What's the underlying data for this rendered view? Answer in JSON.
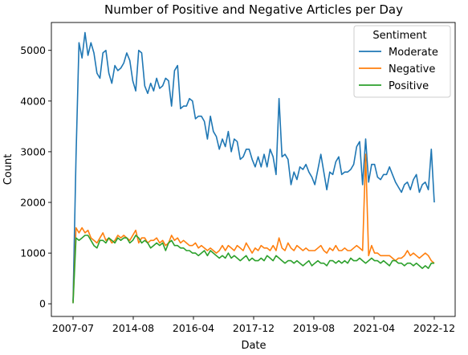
{
  "chart_data": {
    "type": "line",
    "title": "Number of Positive and Negative Articles per Day",
    "xlabel": "Date",
    "ylabel": "Count",
    "x_tick_labels": [
      "2007-07",
      "2014-08",
      "2016-04",
      "2017-12",
      "2019-08",
      "2021-04",
      "2022-12"
    ],
    "y_ticks": [
      0,
      1000,
      2000,
      3000,
      4000,
      5000
    ],
    "ylim": [
      -250,
      5550
    ],
    "grid": false,
    "legend": {
      "title": "Sentiment",
      "placement": "top-right"
    },
    "series": [
      {
        "name": "Moderate",
        "color": "#1f77b4",
        "values": [
          50,
          2900,
          5150,
          4850,
          5350,
          4900,
          5150,
          4950,
          4550,
          4450,
          4950,
          5000,
          4550,
          4350,
          4700,
          4600,
          4650,
          4750,
          4950,
          4800,
          4400,
          4200,
          5000,
          4950,
          4300,
          4150,
          4350,
          4200,
          4450,
          4250,
          4300,
          4450,
          4400,
          3900,
          4600,
          4700,
          3850,
          3900,
          3900,
          4050,
          4000,
          3650,
          3700,
          3700,
          3600,
          3250,
          3700,
          3400,
          3300,
          3050,
          3250,
          3100,
          3400,
          3000,
          3250,
          3200,
          2850,
          2900,
          3050,
          3050,
          2850,
          2700,
          2900,
          2700,
          2950,
          2700,
          3050,
          2900,
          2550,
          4050,
          2900,
          2950,
          2850,
          2350,
          2600,
          2450,
          2700,
          2650,
          2750,
          2600,
          2500,
          2350,
          2650,
          2950,
          2600,
          2250,
          2600,
          2550,
          2800,
          2900,
          2550,
          2600,
          2600,
          2650,
          2750,
          3100,
          3200,
          2350,
          3250,
          2400,
          2750,
          2750,
          2500,
          2450,
          2550,
          2550,
          2700,
          2550,
          2400,
          2300,
          2200,
          2350,
          2400,
          2250,
          2450,
          2550,
          2200,
          2350,
          2400,
          2250,
          3050,
          2000
        ]
      },
      {
        "name": "Negative",
        "color": "#ff7f0e",
        "values": [
          20,
          1500,
          1400,
          1500,
          1400,
          1450,
          1300,
          1250,
          1200,
          1300,
          1400,
          1250,
          1300,
          1200,
          1250,
          1350,
          1300,
          1350,
          1300,
          1250,
          1350,
          1450,
          1200,
          1300,
          1300,
          1200,
          1250,
          1250,
          1300,
          1200,
          1250,
          1150,
          1200,
          1350,
          1250,
          1300,
          1200,
          1250,
          1200,
          1150,
          1150,
          1200,
          1100,
          1150,
          1100,
          1050,
          1100,
          1050,
          1000,
          1050,
          1150,
          1050,
          1150,
          1100,
          1050,
          1150,
          1100,
          1050,
          1200,
          1100,
          1000,
          1100,
          1050,
          1150,
          1100,
          1100,
          1050,
          1150,
          1050,
          1300,
          1100,
          1050,
          1200,
          1100,
          1050,
          1150,
          1100,
          1050,
          1100,
          1050,
          1050,
          1050,
          1100,
          1150,
          1050,
          1000,
          1100,
          1050,
          1150,
          1050,
          1050,
          1100,
          1050,
          1050,
          1100,
          1150,
          1100,
          1050,
          2950,
          950,
          1150,
          1000,
          1000,
          950,
          950,
          950,
          950,
          900,
          850,
          900,
          900,
          950,
          1050,
          950,
          1000,
          950,
          900,
          950,
          1000,
          950,
          850,
          800
        ]
      },
      {
        "name": "Positive",
        "color": "#2ca02c",
        "values": [
          10,
          1300,
          1250,
          1300,
          1350,
          1350,
          1250,
          1150,
          1100,
          1250,
          1250,
          1200,
          1300,
          1250,
          1200,
          1300,
          1250,
          1300,
          1300,
          1200,
          1250,
          1350,
          1300,
          1200,
          1250,
          1200,
          1100,
          1150,
          1200,
          1150,
          1200,
          1050,
          1200,
          1250,
          1150,
          1150,
          1100,
          1100,
          1050,
          1050,
          1000,
          1000,
          950,
          1000,
          1050,
          950,
          1050,
          1000,
          950,
          900,
          950,
          900,
          1000,
          900,
          950,
          900,
          850,
          900,
          950,
          850,
          900,
          850,
          850,
          900,
          850,
          950,
          900,
          850,
          950,
          900,
          850,
          800,
          850,
          850,
          800,
          850,
          800,
          750,
          800,
          850,
          750,
          800,
          850,
          800,
          800,
          750,
          850,
          850,
          800,
          850,
          800,
          850,
          800,
          900,
          850,
          850,
          900,
          850,
          800,
          850,
          900,
          850,
          850,
          800,
          850,
          800,
          750,
          850,
          850,
          800,
          800,
          750,
          800,
          800,
          750,
          800,
          750,
          700,
          750,
          700,
          800,
          800
        ]
      }
    ]
  }
}
